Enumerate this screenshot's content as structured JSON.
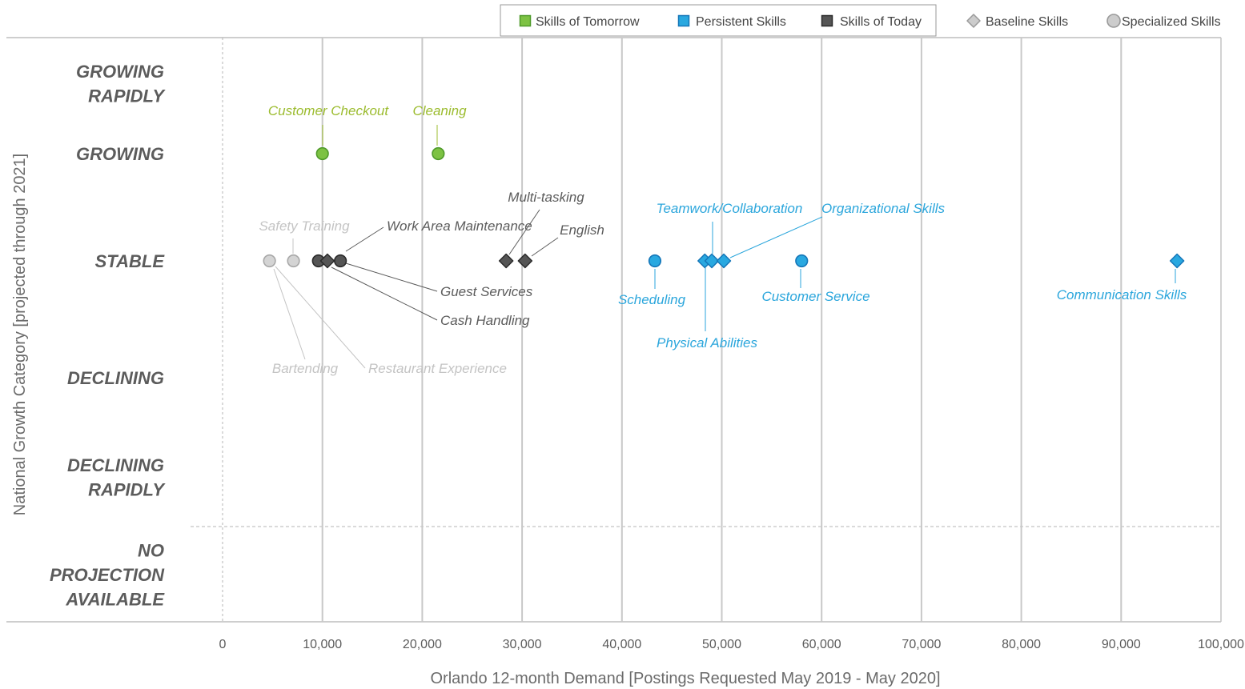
{
  "chart_data": {
    "type": "scatter",
    "xlabel": "Orlando 12-month Demand [Postings Requested May 2019 - May 2020]",
    "ylabel": "National Growth Category [projected through 2021]",
    "xlim": [
      0,
      100000
    ],
    "x_ticks": [
      "0",
      "10,000",
      "20,000",
      "30,000",
      "40,000",
      "50,000",
      "60,000",
      "70,000",
      "80,000",
      "90,000",
      "100,000"
    ],
    "y_categories": [
      {
        "key": "growing_rapidly",
        "lines": [
          "GROWING",
          "RAPIDLY"
        ]
      },
      {
        "key": "growing",
        "lines": [
          "GROWING"
        ]
      },
      {
        "key": "stable",
        "lines": [
          "STABLE"
        ]
      },
      {
        "key": "declining",
        "lines": [
          "DECLINING"
        ]
      },
      {
        "key": "declining_rapidly",
        "lines": [
          "DECLINING",
          "RAPIDLY"
        ]
      },
      {
        "key": "no_projection",
        "lines": [
          "NO",
          "PROJECTION",
          "AVAILABLE"
        ]
      }
    ],
    "legend": [
      {
        "label": "Skills of Tomorrow",
        "marker": "square",
        "color": "#7dc243",
        "boxed": true
      },
      {
        "label": "Persistent Skills",
        "marker": "square",
        "color": "#29a8e0",
        "boxed": true
      },
      {
        "label": "Skills of Today",
        "marker": "square",
        "color": "#555555",
        "boxed": true
      },
      {
        "label": "Baseline Skills",
        "marker": "diamond",
        "color": "#cccccc",
        "boxed": false
      },
      {
        "label": "Specialized Skills",
        "marker": "circle",
        "color": "#cccccc",
        "boxed": false
      }
    ],
    "series": [
      {
        "name": "Skills of Tomorrow",
        "color": "#7dc243",
        "label_color": "#9cbc2f",
        "points": [
          {
            "label": "Customer Checkout",
            "x": 10000,
            "y": "growing",
            "shape": "circle"
          },
          {
            "label": "Cleaning",
            "x": 21600,
            "y": "growing",
            "shape": "circle"
          }
        ]
      },
      {
        "name": "Persistent Skills",
        "color": "#29a8e0",
        "label_color": "#2ba6dc",
        "points": [
          {
            "label": "Scheduling",
            "x": 43300,
            "y": "stable",
            "shape": "circle"
          },
          {
            "label": "Physical Abilities",
            "x": 48300,
            "y": "stable",
            "shape": "diamond"
          },
          {
            "label": "Teamwork/Collaboration",
            "x": 49000,
            "y": "stable",
            "shape": "diamond"
          },
          {
            "label": "Organizational Skills",
            "x": 50200,
            "y": "stable",
            "shape": "diamond"
          },
          {
            "label": "Customer Service",
            "x": 58000,
            "y": "stable",
            "shape": "circle"
          },
          {
            "label": "Communication Skills",
            "x": 95600,
            "y": "stable",
            "shape": "diamond"
          }
        ]
      },
      {
        "name": "Skills of Today",
        "color": "#555555",
        "label_color": "#5c5c5c",
        "points": [
          {
            "label": "Work Area Maintenance",
            "x": 9600,
            "y": "stable",
            "shape": "circle"
          },
          {
            "label": "Cash Handling",
            "x": 10500,
            "y": "stable",
            "shape": "diamond"
          },
          {
            "label": "Guest Services",
            "x": 11800,
            "y": "stable",
            "shape": "circle"
          },
          {
            "label": "Multi-tasking",
            "x": 28400,
            "y": "stable",
            "shape": "diamond"
          },
          {
            "label": "English",
            "x": 30300,
            "y": "stable",
            "shape": "diamond"
          }
        ]
      },
      {
        "name": "Specialized Skills",
        "color": "#d4d4d4",
        "label_color": "#c4c4c4",
        "points": [
          {
            "label": "Bartending",
            "x": 4700,
            "y": "stable",
            "shape": "circle"
          },
          {
            "label": "Restaurant Experience",
            "x": 4700,
            "y": "stable",
            "shape": "circle",
            "same_point_as": "Bartending"
          },
          {
            "label": "Safety Training",
            "x": 7100,
            "y": "stable",
            "shape": "circle"
          }
        ]
      }
    ]
  }
}
